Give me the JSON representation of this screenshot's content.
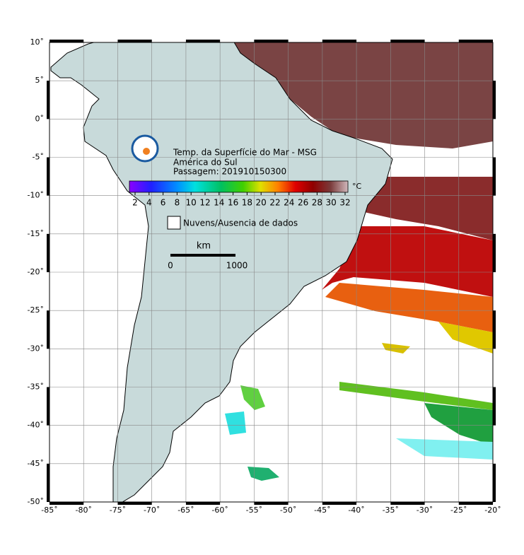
{
  "map": {
    "title_lines": [
      "Temp. da Superfície do Mar - MSG",
      "América do Sul",
      "Passagem: 201910150300"
    ],
    "colorbar": {
      "unit": "°C",
      "ticks": [
        2,
        4,
        6,
        8,
        10,
        12,
        14,
        16,
        18,
        20,
        22,
        24,
        26,
        28,
        30,
        32
      ]
    },
    "legend": "Nuvens/Ausencia de dados",
    "scale": {
      "unit": "km",
      "labels": [
        0,
        1000
      ]
    },
    "lon_ticks": [
      {
        "value": -85,
        "label": "-85˚"
      },
      {
        "value": -80,
        "label": "-80˚"
      },
      {
        "value": -75,
        "label": "-75˚"
      },
      {
        "value": -70,
        "label": "-70˚"
      },
      {
        "value": -65,
        "label": "-65˚"
      },
      {
        "value": -60,
        "label": "-60˚"
      },
      {
        "value": -55,
        "label": "-55˚"
      },
      {
        "value": -50,
        "label": "-50˚"
      },
      {
        "value": -45,
        "label": "-45˚"
      },
      {
        "value": -40,
        "label": "-40˚"
      },
      {
        "value": -35,
        "label": "-35˚"
      },
      {
        "value": -30,
        "label": "-30˚"
      },
      {
        "value": -25,
        "label": "-25˚"
      },
      {
        "value": -20,
        "label": "-20˚"
      }
    ],
    "lat_ticks": [
      {
        "value": 10,
        "label": "10˚"
      },
      {
        "value": 5,
        "label": "5˚"
      },
      {
        "value": 0,
        "label": "0˚"
      },
      {
        "value": -5,
        "label": "-5˚"
      },
      {
        "value": -10,
        "label": "-10˚"
      },
      {
        "value": -15,
        "label": "-15˚"
      },
      {
        "value": -20,
        "label": "-20˚"
      },
      {
        "value": -25,
        "label": "-25˚"
      },
      {
        "value": -30,
        "label": "-30˚"
      },
      {
        "value": -35,
        "label": "-35˚"
      },
      {
        "value": -40,
        "label": "-40˚"
      },
      {
        "value": -45,
        "label": "-45˚"
      },
      {
        "value": -50,
        "label": "-50˚"
      }
    ]
  }
}
